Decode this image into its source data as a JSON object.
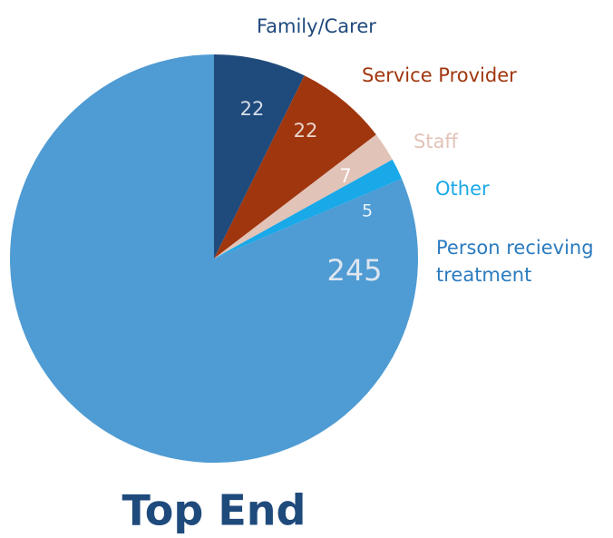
{
  "chart_data": {
    "type": "pie",
    "title": "Top End",
    "categories": [
      "Family/Carer",
      "Service Provider",
      "Staff",
      "Other",
      "Person recieving treatment"
    ],
    "values": [
      22,
      22,
      7,
      5,
      245
    ],
    "colors": [
      "#1f4a7c",
      "#a0360e",
      "#e2c3b8",
      "#1aa9e8",
      "#4f9bd3"
    ]
  }
}
